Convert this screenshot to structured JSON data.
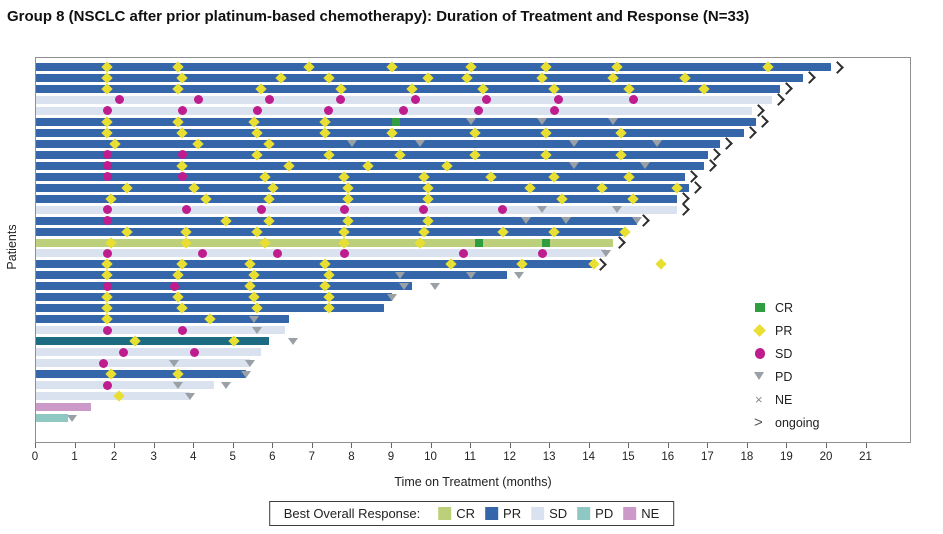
{
  "header": {
    "title": "Group 8 (NSCLC after prior platinum-based chemotherapy): Duration of Treatment and Response (N=33)"
  },
  "chart_data": {
    "type": "swimmer",
    "title": "Group 8 (NSCLC after prior platinum-based chemotherapy): Duration of Treatment and Response (N=33)",
    "xlabel": "Time on Treatment (months)",
    "ylabel": "Patients",
    "n_patients": 33,
    "x_ticks": [
      0,
      1,
      2,
      3,
      4,
      5,
      6,
      7,
      8,
      9,
      10,
      11,
      12,
      13,
      14,
      15,
      16,
      17,
      18,
      19,
      20,
      21
    ],
    "xlim": [
      0,
      22.15
    ],
    "grid": false,
    "bar_colors": {
      "CR": "#bcd07c",
      "PR": "#3566a9",
      "SD": "#dae2f0",
      "PD": "#8fc8c2",
      "PD_dark": "#1d6b82",
      "NE": "#cb9ac8"
    },
    "marker_colors": {
      "CR": "#2f9e41",
      "PR": "#e8df32",
      "SD": "#bf1d8d",
      "PD": "#9aa0a6",
      "NE": "#8a8a8a",
      "ongoing": "#2d2d2d"
    },
    "marker_legend": [
      {
        "key": "CR",
        "label": "CR"
      },
      {
        "key": "PR",
        "label": "PR"
      },
      {
        "key": "SD",
        "label": "SD"
      },
      {
        "key": "PD",
        "label": "PD"
      },
      {
        "key": "NE",
        "label": "NE"
      },
      {
        "key": "ongoing",
        "label": "ongoing"
      }
    ],
    "bar_legend": {
      "title": "Best Overall Response:",
      "items": [
        {
          "key": "CR",
          "label": "CR"
        },
        {
          "key": "PR",
          "label": "PR"
        },
        {
          "key": "SD",
          "label": "SD"
        },
        {
          "key": "PD",
          "label": "PD"
        },
        {
          "key": "NE",
          "label": "NE"
        }
      ]
    },
    "patients": [
      {
        "response": "PR",
        "months": 20.1,
        "ongoing": true,
        "markers": [
          [
            "PR",
            1.8
          ],
          [
            "PR",
            3.6
          ],
          [
            "PR",
            6.9
          ],
          [
            "PR",
            9.0
          ],
          [
            "PR",
            11.0
          ],
          [
            "PR",
            12.9
          ],
          [
            "PR",
            14.7
          ],
          [
            "PR",
            18.5
          ]
        ]
      },
      {
        "response": "PR",
        "months": 19.4,
        "ongoing": true,
        "markers": [
          [
            "PR",
            1.8
          ],
          [
            "PR",
            3.7
          ],
          [
            "PR",
            6.2
          ],
          [
            "PR",
            7.4
          ],
          [
            "PR",
            9.9
          ],
          [
            "PR",
            10.9
          ],
          [
            "PR",
            12.8
          ],
          [
            "PR",
            14.6
          ],
          [
            "PR",
            16.4
          ]
        ]
      },
      {
        "response": "PR",
        "months": 18.8,
        "ongoing": true,
        "markers": [
          [
            "PR",
            1.8
          ],
          [
            "PR",
            3.6
          ],
          [
            "PR",
            5.7
          ],
          [
            "PR",
            7.7
          ],
          [
            "PR",
            9.5
          ],
          [
            "PR",
            11.3
          ],
          [
            "PR",
            13.1
          ],
          [
            "PR",
            15.0
          ],
          [
            "PR",
            16.9
          ]
        ]
      },
      {
        "response": "SD",
        "months": 18.6,
        "ongoing": true,
        "markers": [
          [
            "SD",
            2.1
          ],
          [
            "SD",
            4.1
          ],
          [
            "SD",
            5.9
          ],
          [
            "SD",
            7.7
          ],
          [
            "SD",
            9.6
          ],
          [
            "SD",
            11.4
          ],
          [
            "SD",
            13.2
          ],
          [
            "SD",
            15.1
          ]
        ]
      },
      {
        "response": "SD",
        "months": 18.1,
        "ongoing": true,
        "markers": [
          [
            "SD",
            1.8
          ],
          [
            "SD",
            3.7
          ],
          [
            "SD",
            5.6
          ],
          [
            "SD",
            7.4
          ],
          [
            "SD",
            9.3
          ],
          [
            "SD",
            11.2
          ],
          [
            "SD",
            13.1
          ]
        ]
      },
      {
        "response": "PR",
        "months": 18.2,
        "ongoing": true,
        "markers": [
          [
            "PR",
            1.8
          ],
          [
            "PR",
            3.6
          ],
          [
            "PR",
            5.5
          ],
          [
            "PR",
            7.3
          ],
          [
            "CR",
            9.1
          ],
          [
            "PD",
            11.0
          ],
          [
            "PD",
            12.8
          ],
          [
            "PD",
            14.6
          ]
        ]
      },
      {
        "response": "PR",
        "months": 17.9,
        "ongoing": true,
        "markers": [
          [
            "PR",
            1.8
          ],
          [
            "PR",
            3.7
          ],
          [
            "PR",
            5.6
          ],
          [
            "PR",
            7.3
          ],
          [
            "PR",
            9.0
          ],
          [
            "PR",
            11.1
          ],
          [
            "PR",
            12.9
          ],
          [
            "PR",
            14.8
          ]
        ]
      },
      {
        "response": "PR",
        "months": 17.3,
        "ongoing": true,
        "markers": [
          [
            "PR",
            2.0
          ],
          [
            "PR",
            4.1
          ],
          [
            "PR",
            5.9
          ],
          [
            "PD",
            8.0
          ],
          [
            "PD",
            9.7
          ],
          [
            "PD",
            13.6
          ],
          [
            "PD",
            15.7
          ]
        ]
      },
      {
        "response": "PR",
        "months": 17.0,
        "ongoing": true,
        "markers": [
          [
            "SD",
            1.8
          ],
          [
            "SD",
            3.7
          ],
          [
            "PR",
            5.6
          ],
          [
            "PR",
            7.4
          ],
          [
            "PR",
            9.2
          ],
          [
            "PR",
            11.1
          ],
          [
            "PR",
            12.9
          ],
          [
            "PR",
            14.8
          ]
        ]
      },
      {
        "response": "PR",
        "months": 16.9,
        "ongoing": true,
        "markers": [
          [
            "SD",
            1.8
          ],
          [
            "PR",
            3.7
          ],
          [
            "PR",
            6.4
          ],
          [
            "PR",
            8.4
          ],
          [
            "PR",
            10.4
          ],
          [
            "PD",
            13.6
          ],
          [
            "PD",
            15.4
          ]
        ]
      },
      {
        "response": "PR",
        "months": 16.4,
        "ongoing": true,
        "markers": [
          [
            "SD",
            1.8
          ],
          [
            "SD",
            3.7
          ],
          [
            "PR",
            5.8
          ],
          [
            "PR",
            7.8
          ],
          [
            "PR",
            9.8
          ],
          [
            "PR",
            11.5
          ],
          [
            "PR",
            13.1
          ],
          [
            "PR",
            15.0
          ]
        ]
      },
      {
        "response": "PR",
        "months": 16.5,
        "ongoing": true,
        "markers": [
          [
            "PR",
            2.3
          ],
          [
            "PR",
            4.0
          ],
          [
            "PR",
            6.0
          ],
          [
            "PR",
            7.9
          ],
          [
            "PR",
            9.9
          ],
          [
            "PR",
            12.5
          ],
          [
            "PR",
            14.3
          ],
          [
            "PR",
            16.2
          ]
        ]
      },
      {
        "response": "PR",
        "months": 16.2,
        "ongoing": true,
        "markers": [
          [
            "PR",
            1.9
          ],
          [
            "PR",
            4.3
          ],
          [
            "PR",
            5.9
          ],
          [
            "PR",
            7.9
          ],
          [
            "PR",
            9.9
          ],
          [
            "PR",
            13.3
          ],
          [
            "PR",
            15.1
          ]
        ]
      },
      {
        "response": "SD",
        "months": 16.2,
        "ongoing": true,
        "markers": [
          [
            "SD",
            1.8
          ],
          [
            "SD",
            3.8
          ],
          [
            "SD",
            5.7
          ],
          [
            "SD",
            7.8
          ],
          [
            "SD",
            9.8
          ],
          [
            "SD",
            11.8
          ],
          [
            "PD",
            12.8
          ],
          [
            "PD",
            14.7
          ]
        ]
      },
      {
        "response": "PR",
        "months": 15.2,
        "ongoing": true,
        "markers": [
          [
            "SD",
            1.8
          ],
          [
            "PR",
            4.8
          ],
          [
            "PR",
            5.9
          ],
          [
            "PR",
            7.9
          ],
          [
            "PR",
            9.9
          ],
          [
            "PD",
            12.4
          ],
          [
            "PD",
            13.4
          ],
          [
            "PD",
            15.2
          ]
        ]
      },
      {
        "response": "PR",
        "months": 14.9,
        "ongoing": false,
        "markers": [
          [
            "PR",
            2.3
          ],
          [
            "PR",
            3.8
          ],
          [
            "PR",
            5.6
          ],
          [
            "PR",
            7.8
          ],
          [
            "PR",
            9.8
          ],
          [
            "PR",
            11.8
          ],
          [
            "PR",
            13.1
          ],
          [
            "PR",
            14.9
          ]
        ]
      },
      {
        "response": "CR",
        "months": 14.6,
        "ongoing": true,
        "markers": [
          [
            "PR",
            1.9
          ],
          [
            "PR",
            3.8
          ],
          [
            "PR",
            5.8
          ],
          [
            "PR",
            7.8
          ],
          [
            "PR",
            9.7
          ],
          [
            "CR",
            11.2
          ],
          [
            "CR",
            12.9
          ]
        ]
      },
      {
        "response": "SD",
        "months": 14.4,
        "ongoing": false,
        "markers": [
          [
            "SD",
            1.8
          ],
          [
            "SD",
            4.2
          ],
          [
            "SD",
            6.1
          ],
          [
            "SD",
            7.8
          ],
          [
            "SD",
            10.8
          ],
          [
            "SD",
            12.8
          ],
          [
            "PD",
            14.4
          ]
        ]
      },
      {
        "response": "PR",
        "months": 14.1,
        "ongoing": true,
        "markers": [
          [
            "PR",
            1.8
          ],
          [
            "PR",
            3.7
          ],
          [
            "PR",
            5.4
          ],
          [
            "PR",
            7.3
          ],
          [
            "PR",
            10.5
          ],
          [
            "PR",
            12.3
          ],
          [
            "PR",
            14.1
          ],
          [
            "PR",
            15.8
          ]
        ]
      },
      {
        "response": "PR",
        "months": 11.9,
        "ongoing": false,
        "markers": [
          [
            "PR",
            1.8
          ],
          [
            "PR",
            3.6
          ],
          [
            "PR",
            5.5
          ],
          [
            "PR",
            7.4
          ],
          [
            "PD",
            9.2
          ],
          [
            "PD",
            11.0
          ],
          [
            "PD",
            12.2
          ]
        ]
      },
      {
        "response": "PR",
        "months": 9.5,
        "ongoing": false,
        "markers": [
          [
            "SD",
            1.8
          ],
          [
            "SD",
            3.5
          ],
          [
            "PR",
            5.4
          ],
          [
            "PR",
            7.3
          ],
          [
            "PD",
            9.3
          ],
          [
            "PD",
            10.1
          ]
        ]
      },
      {
        "response": "PR",
        "months": 9.0,
        "ongoing": false,
        "markers": [
          [
            "PR",
            1.8
          ],
          [
            "PR",
            3.6
          ],
          [
            "PR",
            5.5
          ],
          [
            "PR",
            7.4
          ],
          [
            "PD",
            9.0
          ]
        ]
      },
      {
        "response": "PR",
        "months": 8.8,
        "ongoing": false,
        "markers": [
          [
            "PR",
            1.8
          ],
          [
            "PR",
            3.7
          ],
          [
            "PR",
            5.6
          ],
          [
            "PR",
            7.4
          ]
        ]
      },
      {
        "response": "PR",
        "months": 6.4,
        "ongoing": false,
        "markers": [
          [
            "PR",
            1.8
          ],
          [
            "PR",
            4.4
          ],
          [
            "PD",
            5.5
          ]
        ]
      },
      {
        "response": "SD",
        "months": 6.3,
        "ongoing": false,
        "markers": [
          [
            "SD",
            1.8
          ],
          [
            "SD",
            3.7
          ],
          [
            "PD",
            5.6
          ]
        ]
      },
      {
        "response": "PD_dark",
        "months": 5.9,
        "ongoing": false,
        "markers": [
          [
            "PR",
            2.5
          ],
          [
            "PR",
            5.0
          ],
          [
            "PD",
            6.5
          ]
        ]
      },
      {
        "response": "SD",
        "months": 5.7,
        "ongoing": false,
        "markers": [
          [
            "SD",
            2.2
          ],
          [
            "SD",
            4.0
          ]
        ]
      },
      {
        "response": "SD",
        "months": 5.4,
        "ongoing": false,
        "markers": [
          [
            "SD",
            1.7
          ],
          [
            "PD",
            3.5
          ],
          [
            "PD",
            5.4
          ]
        ]
      },
      {
        "response": "PR",
        "months": 5.3,
        "ongoing": false,
        "markers": [
          [
            "PR",
            1.9
          ],
          [
            "PR",
            3.6
          ],
          [
            "PD",
            5.3
          ]
        ]
      },
      {
        "response": "SD",
        "months": 4.5,
        "ongoing": false,
        "markers": [
          [
            "SD",
            1.8
          ],
          [
            "PD",
            3.6
          ],
          [
            "PD",
            4.8
          ]
        ]
      },
      {
        "response": "SD",
        "months": 3.9,
        "ongoing": false,
        "markers": [
          [
            "PR",
            2.1
          ],
          [
            "PD",
            3.9
          ]
        ]
      },
      {
        "response": "NE",
        "months": 1.4,
        "ongoing": false,
        "markers": []
      },
      {
        "response": "PD",
        "months": 0.8,
        "ongoing": false,
        "markers": [
          [
            "PD",
            0.9
          ]
        ]
      }
    ]
  }
}
